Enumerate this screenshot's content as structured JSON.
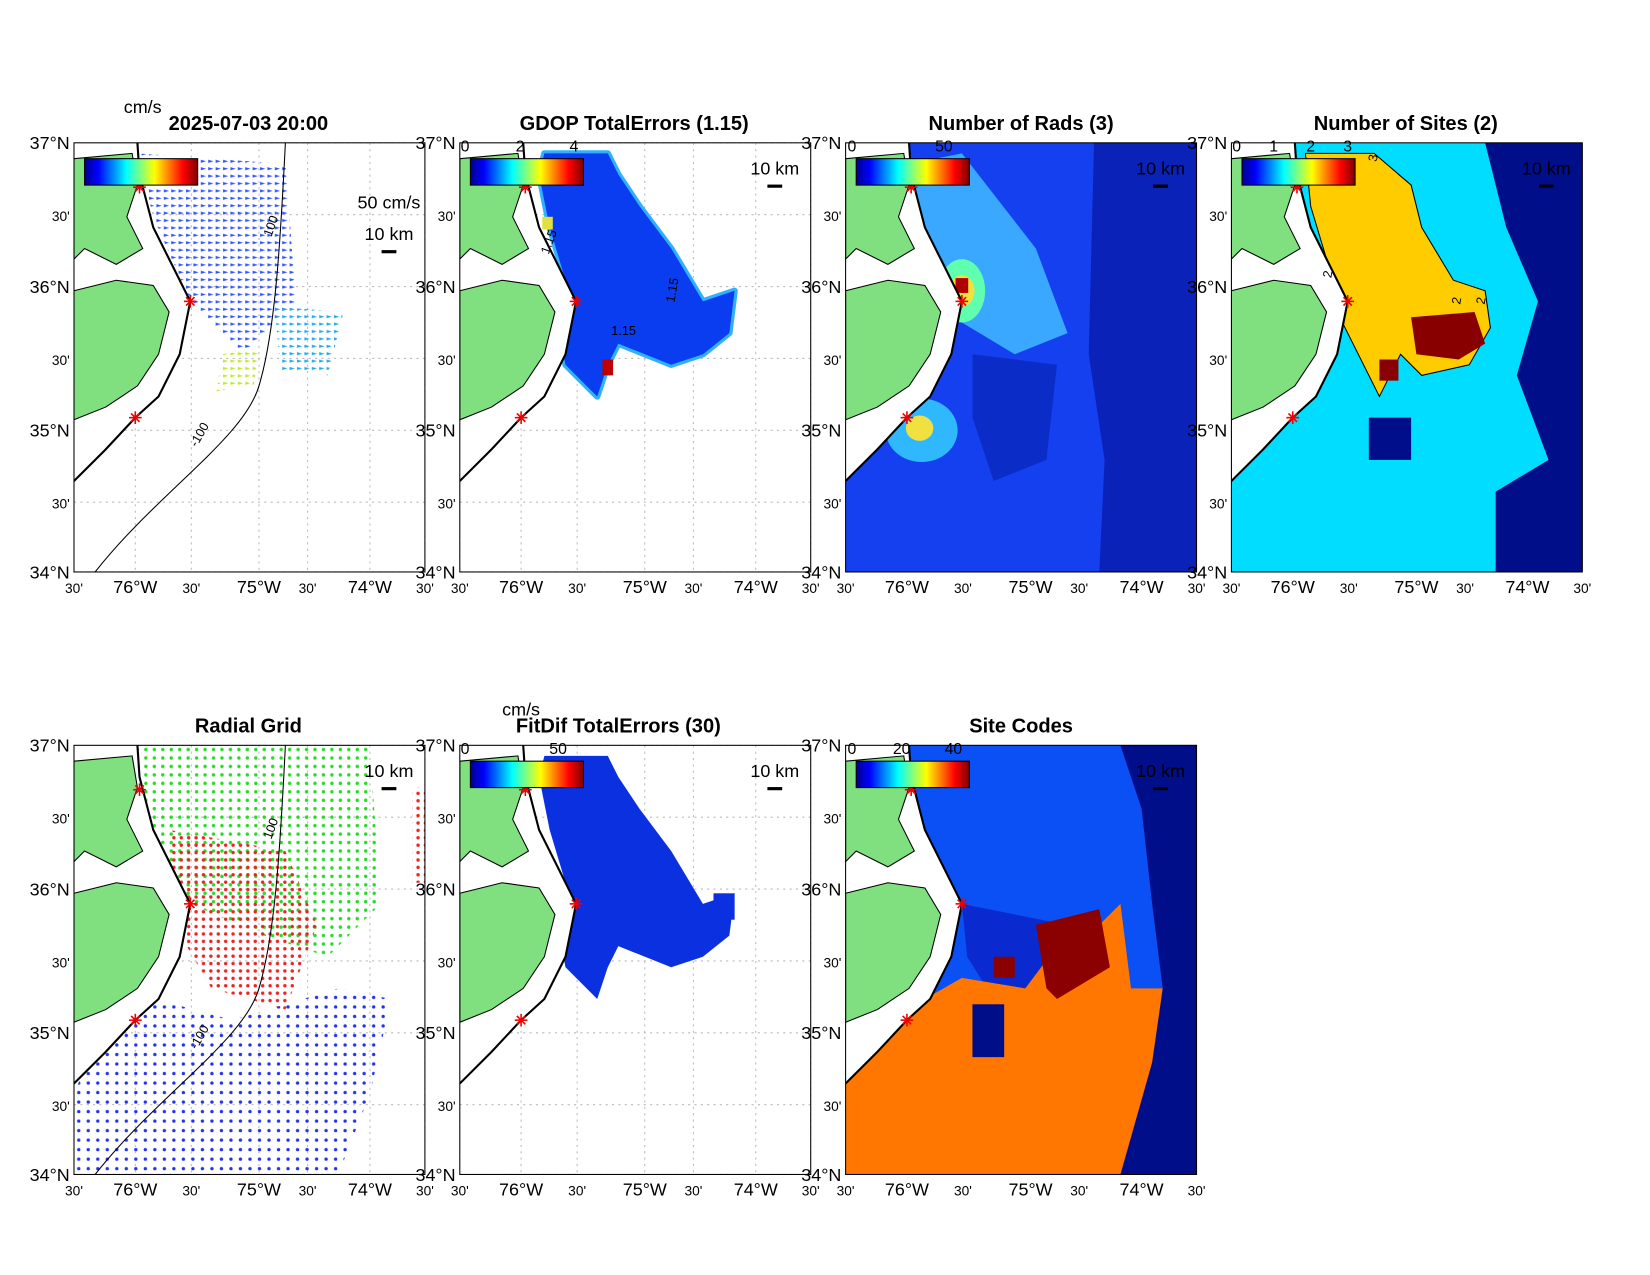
{
  "lat_labels": [
    "37°N",
    "30'",
    "36°N",
    "30'",
    "35°N",
    "30'",
    "34°N"
  ],
  "lon_labels": [
    "30'",
    "76°W",
    "30'",
    "75°W",
    "30'",
    "74°W",
    "30'"
  ],
  "panels": [
    {
      "title": "2025-07-03 20:00",
      "unit": "cm/s",
      "vector_scale": "50 cm/s",
      "scale_bar": "10 km",
      "contour_labels": [
        "100",
        "-100"
      ]
    },
    {
      "title": "GDOP TotalErrors (1.15)",
      "colorbar_ticks": [
        "0",
        "2",
        "4"
      ],
      "scale_bar": "10 km",
      "contour_labels": [
        "1.15",
        "1.15",
        "1.15"
      ]
    },
    {
      "title": "Number of Rads (3)",
      "colorbar_ticks": [
        "0",
        "50"
      ],
      "scale_bar": "10 km"
    },
    {
      "title": "Number of Sites (2)",
      "colorbar_ticks": [
        "0",
        "1",
        "2",
        "3"
      ],
      "scale_bar": "10 km",
      "contour_labels": [
        "3",
        "2",
        "2",
        "2"
      ]
    },
    {
      "title": "Radial Grid",
      "scale_bar": "10 km",
      "contour_labels": [
        "100",
        "-100"
      ]
    },
    {
      "title": "FitDif TotalErrors (30)",
      "unit": "cm/s",
      "colorbar_ticks": [
        "0",
        "50"
      ],
      "scale_bar": "10 km"
    },
    {
      "title": "Site Codes",
      "colorbar_ticks": [
        "0",
        "20",
        "40"
      ],
      "scale_bar": "10 km"
    }
  ]
}
